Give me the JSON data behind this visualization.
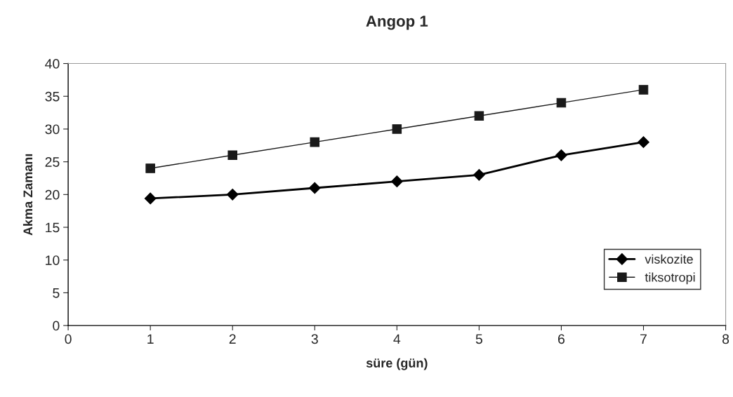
{
  "chart_data": {
    "type": "line",
    "title": "Angop 1",
    "xlabel": "süre (gün)",
    "ylabel": "Akma Zamanı",
    "x": [
      1,
      2,
      3,
      4,
      5,
      6,
      7
    ],
    "series": [
      {
        "name": "viskozite",
        "color": "#000000",
        "marker": "diamond",
        "values": [
          19.4,
          20,
          21,
          22,
          23,
          26,
          28
        ]
      },
      {
        "name": "tiksotropi",
        "color": "#1a1a1a",
        "marker": "square",
        "values": [
          24,
          26,
          28,
          30,
          32,
          34,
          36
        ]
      }
    ],
    "xlim": [
      0,
      8
    ],
    "xticks": [
      0,
      1,
      2,
      3,
      4,
      5,
      6,
      7,
      8
    ],
    "ylim": [
      0,
      40
    ],
    "yticks": [
      0,
      5,
      10,
      15,
      20,
      25,
      30,
      35,
      40
    ],
    "grid": false,
    "legend": "bottom right",
    "line_style": "solid"
  }
}
